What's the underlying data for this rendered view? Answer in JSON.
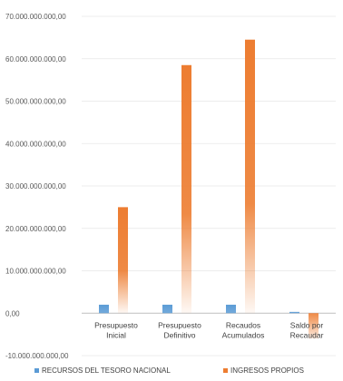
{
  "chart_data": {
    "type": "bar",
    "categories": [
      [
        "Presupuesto",
        "Inicial"
      ],
      [
        "Presupuesto",
        "Definitivo"
      ],
      [
        "Recaudos",
        "Acumulados"
      ],
      [
        "Saldo por",
        "Recaudar"
      ]
    ],
    "series": [
      {
        "name": "RECURSOS DEL TESORO NACIONAL",
        "color": "#5B9BD5",
        "values": [
          2000000000,
          2000000000,
          2000000000,
          300000000
        ]
      },
      {
        "name": "INGRESOS PROPIOS",
        "color": "#ED7D31",
        "values": [
          25000000000,
          58500000000,
          64500000000,
          -6000000000
        ]
      }
    ],
    "yticks": [
      "-10.000.000.000,00",
      "0,00",
      "10.000.000.000,00",
      "20.000.000.000,00",
      "30.000.000.000,00",
      "40.000.000.000,00",
      "50.000.000.000,00",
      "60.000.000.000,00",
      "70.000.000.000,00"
    ],
    "ylim": [
      -10000000000,
      70000000000
    ],
    "grid": true,
    "legend_position": "bottom"
  }
}
